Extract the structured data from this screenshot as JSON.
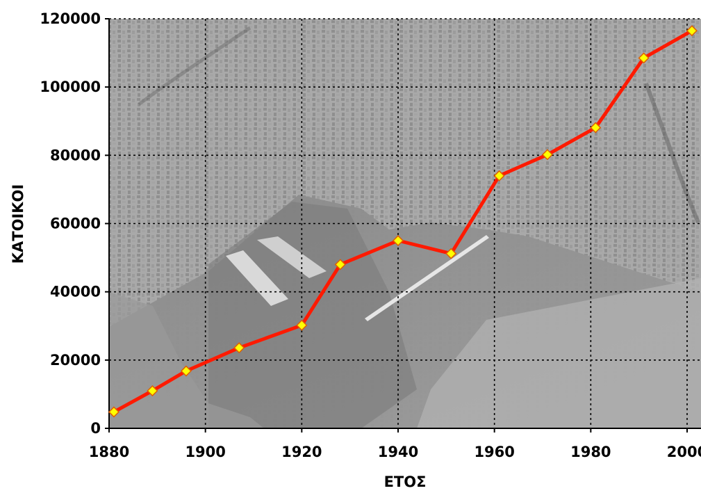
{
  "chart_data": {
    "type": "line",
    "xlabel": "ΕΤΟΣ",
    "ylabel": "ΚΑΤΟΙΚΟΙ",
    "xlim": [
      1880,
      2000
    ],
    "ylim": [
      0,
      120000
    ],
    "x_ticks": [
      "1880",
      "1900",
      "1920",
      "1940",
      "1960",
      "1980",
      "2000"
    ],
    "y_ticks": [
      "0",
      "20000",
      "40000",
      "60000",
      "80000",
      "100000",
      "120000"
    ],
    "grid": true,
    "background": "grayscale aerial photograph of a coastal city and harbor",
    "line_color": "#ff1a00",
    "marker_color": "#ffff00",
    "marker_edge_color": "#e06000",
    "marker": "diamond",
    "series": [
      {
        "x": [
          1881,
          1889,
          1896,
          1907,
          1920,
          1928,
          1940,
          1951,
          1961,
          1971,
          1981,
          1991,
          2001
        ],
        "y": [
          4800,
          11000,
          16800,
          23600,
          30200,
          48000,
          55000,
          51200,
          74000,
          80200,
          88100,
          108500,
          116500
        ]
      }
    ]
  }
}
